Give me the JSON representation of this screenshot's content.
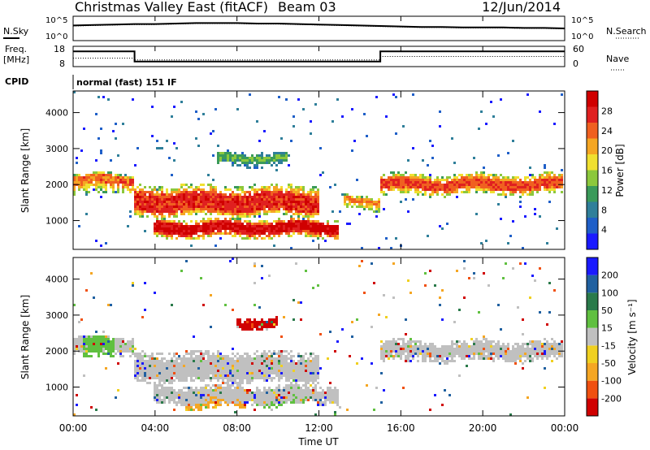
{
  "header": {
    "title": "Christmas Valley East (fitACF)",
    "beam": "Beam 03",
    "date": "12/Jun/2014"
  },
  "side_labels": {
    "nsky": "N.Sky",
    "nsearch": "N.Search",
    "freq": "Freq.",
    "freq_unit": "[MHz]",
    "nave": "Nave",
    "cpid": "CPID"
  },
  "cpid_text": "normal (fast) 151 IF",
  "chart_data": [
    {
      "type": "line",
      "panel": "noise",
      "series": [
        {
          "name": "N.Sky",
          "values": [
            3.1,
            3.2,
            3.3,
            3.4,
            3.4,
            3.5,
            3.6,
            3.6,
            3.6,
            3.5,
            3.5,
            3.4,
            3.3,
            3.2,
            3.1,
            3.0,
            2.9,
            2.8,
            2.8,
            2.7,
            2.7,
            2.7,
            2.6,
            2.6,
            2.5
          ]
        },
        {
          "name": "N.Search",
          "values": [
            3.0,
            3.1,
            3.2,
            3.3,
            3.3,
            3.4,
            3.5,
            3.5,
            3.5,
            3.4,
            3.4,
            3.3,
            3.2,
            3.1,
            3.0,
            2.9,
            2.8,
            2.7,
            2.7,
            2.6,
            2.6,
            2.6,
            2.5,
            2.5,
            2.4
          ]
        }
      ],
      "x_hours": [
        0,
        1,
        2,
        3,
        4,
        5,
        6,
        7,
        8,
        9,
        10,
        11,
        12,
        13,
        14,
        15,
        16,
        17,
        18,
        19,
        20,
        21,
        22,
        23,
        24
      ],
      "left_ticks": [
        "10^5",
        "10^0"
      ],
      "right_ticks": [
        "10^5",
        "10^0"
      ],
      "ylim": [
        0,
        5
      ]
    },
    {
      "type": "line",
      "panel": "frequency",
      "series": [
        {
          "name": "Freq.",
          "steps": [
            [
              0,
              3,
              15.5
            ],
            [
              3,
              15,
              10.5
            ],
            [
              15,
              24,
              15.5
            ]
          ]
        },
        {
          "name": "Nave",
          "steps": [
            [
              0,
              3,
              25
            ],
            [
              3,
              15,
              20
            ],
            [
              15,
              24,
              30
            ]
          ]
        }
      ],
      "left_ticks": [
        "18",
        "8"
      ],
      "right_ticks": [
        "60",
        "0"
      ],
      "ylim_left": [
        8,
        18
      ],
      "ylim_right": [
        0,
        60
      ]
    },
    {
      "type": "heatmap",
      "panel": "power",
      "ylabel": "Slant Range [km]",
      "y_ticks": [
        "1000",
        "2000",
        "3000",
        "4000"
      ],
      "ylim": [
        200,
        4600
      ],
      "xlim": [
        0,
        24
      ],
      "colorbar": {
        "label": "Power [dB]",
        "ticks": [
          "4",
          "8",
          "12",
          "16",
          "20",
          "24",
          "28"
        ],
        "colors": [
          "#1a1aff",
          "#1f5fc8",
          "#2f7f9a",
          "#3a9a5a",
          "#8cc83c",
          "#f0e030",
          "#f5a623",
          "#f06020",
          "#e02020",
          "#d00000"
        ]
      },
      "bands": [
        {
          "start": 0.0,
          "end": 3.0,
          "r": [
            1700,
            2050,
            2200,
            2300
          ],
          "level": 0.75
        },
        {
          "start": 3.0,
          "end": 12.0,
          "r": [
            1100,
            1300,
            1700,
            2000
          ],
          "level": 0.85
        },
        {
          "start": 4.0,
          "end": 13.0,
          "r": [
            500,
            700,
            900,
            1050
          ],
          "level": 0.95
        },
        {
          "start": 13.2,
          "end": 15.0,
          "r": [
            1300,
            1500,
            1600,
            1700
          ],
          "level": 0.7
        },
        {
          "start": 15.0,
          "end": 24.0,
          "r": [
            1700,
            1900,
            2100,
            2300
          ],
          "level": 0.8
        },
        {
          "start": 7.0,
          "end": 10.5,
          "r": [
            2500,
            2700,
            2800,
            2900
          ],
          "level": 0.4
        }
      ]
    },
    {
      "type": "heatmap",
      "panel": "velocity",
      "ylabel": "Slant Range [km]",
      "y_ticks": [
        "1000",
        "2000",
        "3000",
        "4000"
      ],
      "ylim": [
        200,
        4600
      ],
      "xlim": [
        0,
        24
      ],
      "x_ticks": [
        "00:00",
        "04:00",
        "08:00",
        "12:00",
        "16:00",
        "20:00",
        "00:00"
      ],
      "xlabel": "Time UT",
      "colorbar": {
        "label": "Velocity [m s⁻¹]",
        "ticks": [
          "-200",
          "-100",
          "-50",
          "-15",
          "15",
          "50",
          "100",
          "200"
        ],
        "colors": [
          "#d00000",
          "#f05010",
          "#f5a623",
          "#f0d020",
          "#c0c0c0",
          "#60c040",
          "#2a7a4a",
          "#2060a0",
          "#1a1aff"
        ]
      },
      "bands": [
        {
          "start": 0.5,
          "end": 2.0,
          "r": [
            1800,
            2100,
            2300,
            2400
          ],
          "color": "#60c040"
        },
        {
          "start": 0.0,
          "end": 3.0,
          "r": [
            1900,
            2100,
            2300,
            2400
          ],
          "color": "#c0c0c0"
        },
        {
          "start": 3.0,
          "end": 12.0,
          "r": [
            1100,
            1300,
            1700,
            2000
          ],
          "color": "#c0c0c0"
        },
        {
          "start": 4.0,
          "end": 13.0,
          "r": [
            500,
            700,
            900,
            1050
          ],
          "color": "#c0c0c0"
        },
        {
          "start": 5.5,
          "end": 8.5,
          "r": [
            400,
            550,
            800,
            950
          ],
          "color": "#f5a623"
        },
        {
          "start": 9.0,
          "end": 11.5,
          "r": [
            450,
            600,
            850,
            950
          ],
          "color": "#60c040"
        },
        {
          "start": 15.0,
          "end": 24.0,
          "r": [
            1700,
            1900,
            2100,
            2300
          ],
          "color": "#c0c0c0"
        },
        {
          "start": 8.0,
          "end": 10.0,
          "r": [
            2600,
            2700,
            2800,
            2950
          ],
          "color": "#d00000"
        }
      ]
    }
  ]
}
